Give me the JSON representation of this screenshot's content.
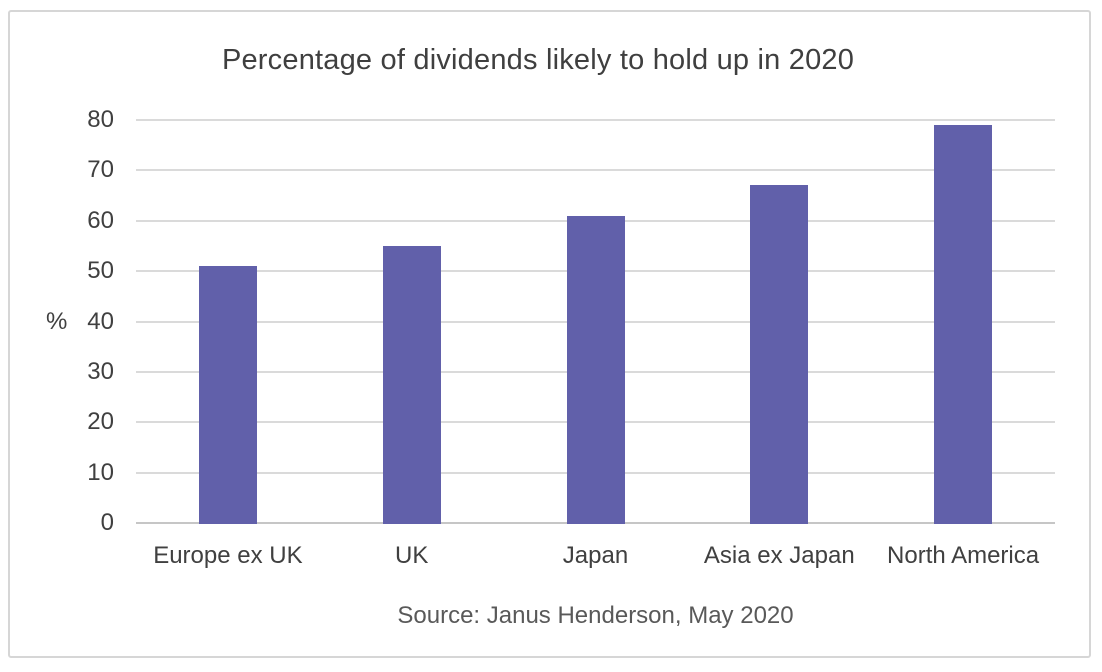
{
  "chart_data": {
    "type": "bar",
    "title": "Percentage of dividends likely to hold up in 2020",
    "categories": [
      "Europe ex UK",
      "UK",
      "Japan",
      "Asia ex Japan",
      "North America"
    ],
    "values": [
      51,
      55,
      61,
      67,
      79
    ],
    "xlabel": "",
    "ylabel": "%",
    "ylim": [
      0,
      80
    ],
    "ytick_step": 10,
    "yticks": [
      0,
      10,
      20,
      30,
      40,
      50,
      60,
      70,
      80
    ],
    "grid": true,
    "legend": "none",
    "source": "Source: Janus Henderson, May 2020",
    "colors": {
      "bar": "#6160AA",
      "grid": "#DADADA",
      "baseline": "#C6C6C6",
      "title_text": "#3F3F3F",
      "axis_text": "#404040",
      "source_text": "#595959",
      "frame_border": "#D6D6D6"
    }
  }
}
